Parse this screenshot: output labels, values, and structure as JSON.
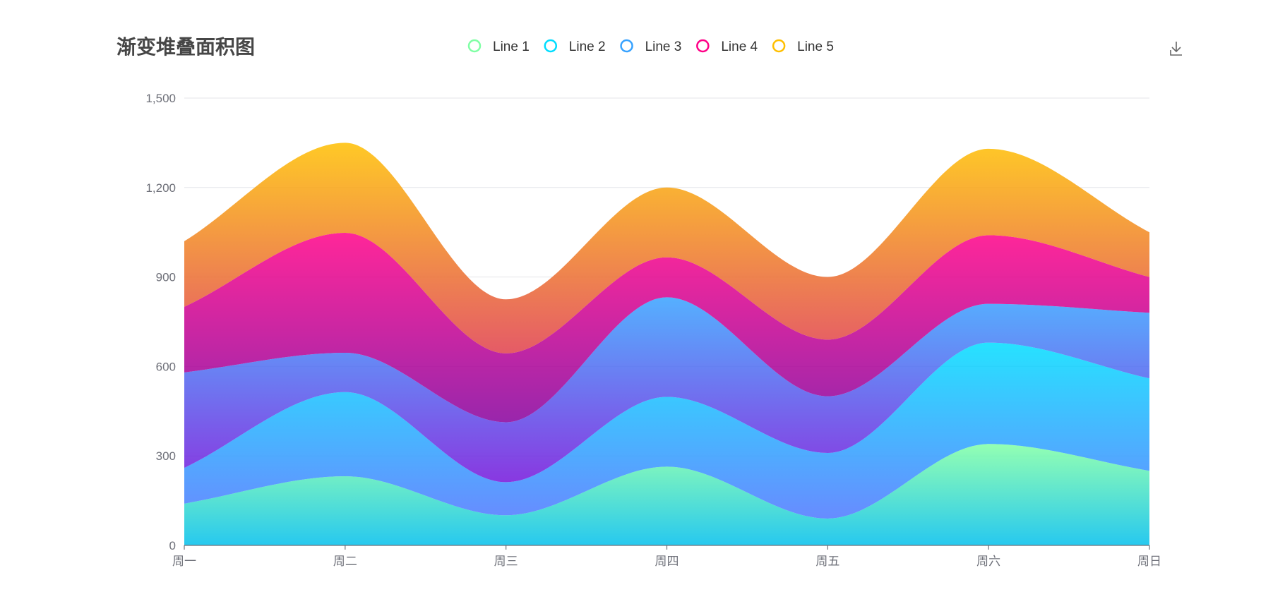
{
  "chart_data": {
    "type": "area",
    "stacked": true,
    "smooth": true,
    "title": "渐变堆叠面积图",
    "categories": [
      "周一",
      "周二",
      "周三",
      "周四",
      "周五",
      "周六",
      "周日"
    ],
    "ylim": [
      0,
      1500
    ],
    "yticks": [
      "0",
      "300",
      "600",
      "900",
      "1,200",
      "1,500"
    ],
    "grid": true,
    "legend_position": "top-center",
    "series": [
      {
        "name": "Line 1",
        "values": [
          140,
          232,
          101,
          264,
          90,
          340,
          250
        ],
        "color_top": "#80ffa5",
        "color_bottom": "#01bfec",
        "marker": "#80ffa5"
      },
      {
        "name": "Line 2",
        "values": [
          120,
          282,
          111,
          234,
          220,
          340,
          310
        ],
        "color_top": "#00ddff",
        "color_bottom": "#4d77ff",
        "marker": "#00ddff"
      },
      {
        "name": "Line 3",
        "values": [
          320,
          132,
          201,
          334,
          190,
          130,
          220
        ],
        "color_top": "#37a2ff",
        "color_bottom": "#7415db",
        "marker": "#37a2ff"
      },
      {
        "name": "Line 4",
        "values": [
          220,
          402,
          231,
          134,
          190,
          230,
          120
        ],
        "color_top": "#ff0087",
        "color_bottom": "#87009d",
        "marker": "#ff0087"
      },
      {
        "name": "Line 5",
        "values": [
          220,
          302,
          181,
          234,
          210,
          290,
          150
        ],
        "color_top": "#ffbf00",
        "color_bottom": "#e03e4c",
        "marker": "#ffbf00"
      }
    ]
  },
  "toolbox": {
    "download_icon": "download-icon",
    "download_color": "#666666"
  }
}
